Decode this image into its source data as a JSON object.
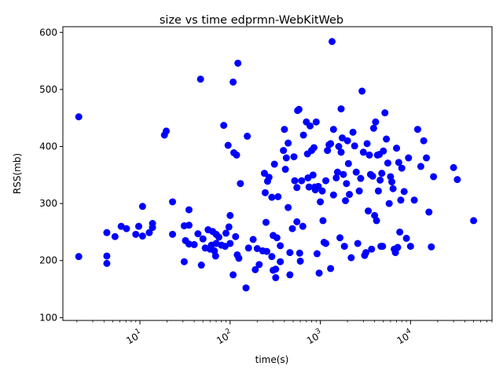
{
  "chart_data": {
    "type": "scatter",
    "title": "size vs time edprmn-WebKitWeb",
    "xlabel": "time(s)",
    "ylabel": "RSS(mb)",
    "xscale": "log",
    "xlim": [
      1.4,
      80000
    ],
    "ylim": [
      95,
      610
    ],
    "x_ticks": [
      10,
      100,
      1000,
      10000
    ],
    "x_tick_labels": [
      {
        "base": "10",
        "exp": "1"
      },
      {
        "base": "10",
        "exp": "2"
      },
      {
        "base": "10",
        "exp": "3"
      },
      {
        "base": "10",
        "exp": "4"
      }
    ],
    "y_ticks": [
      100,
      200,
      300,
      400,
      500,
      600
    ],
    "y_tick_labels": [
      "100",
      "200",
      "300",
      "400",
      "500",
      "600"
    ],
    "grid": false,
    "legend": "none",
    "marker_color": "#0000ff",
    "series": [
      {
        "points": [
          [
            2.1,
            452
          ],
          [
            2.1,
            207
          ],
          [
            4.3,
            249
          ],
          [
            4.3,
            208
          ],
          [
            4.3,
            195
          ],
          [
            5.3,
            242
          ],
          [
            6.2,
            260
          ],
          [
            7.1,
            256
          ],
          [
            9.0,
            246
          ],
          [
            9.7,
            260
          ],
          [
            10.7,
            295
          ],
          [
            10.7,
            243
          ],
          [
            12.7,
            249
          ],
          [
            13.8,
            265
          ],
          [
            13.8,
            258
          ],
          [
            18.7,
            420
          ],
          [
            19.6,
            427
          ],
          [
            23,
            303
          ],
          [
            23,
            246
          ],
          [
            31,
            261
          ],
          [
            31,
            198
          ],
          [
            32,
            235
          ],
          [
            35,
            289
          ],
          [
            35,
            262
          ],
          [
            35,
            229
          ],
          [
            40,
            228
          ],
          [
            44,
            247
          ],
          [
            47,
            518
          ],
          [
            48,
            192
          ],
          [
            50,
            238
          ],
          [
            53,
            222
          ],
          [
            57,
            254
          ],
          [
            60,
            220
          ],
          [
            62,
            227
          ],
          [
            64,
            251
          ],
          [
            67,
            217
          ],
          [
            69,
            208
          ],
          [
            70,
            230
          ],
          [
            70,
            246
          ],
          [
            75,
            241
          ],
          [
            80,
            227
          ],
          [
            85,
            437
          ],
          [
            88,
            225
          ],
          [
            90,
            248
          ],
          [
            95,
            402
          ],
          [
            97,
            259
          ],
          [
            100,
            279
          ],
          [
            100,
            230
          ],
          [
            108,
            513
          ],
          [
            108,
            175
          ],
          [
            110,
            389
          ],
          [
            115,
            242
          ],
          [
            118,
            385
          ],
          [
            120,
            210
          ],
          [
            122,
            546
          ],
          [
            125,
            204
          ],
          [
            130,
            335
          ],
          [
            150,
            152
          ],
          [
            155,
            418
          ],
          [
            160,
            222
          ],
          [
            180,
            237
          ],
          [
            190,
            184
          ],
          [
            200,
            221
          ],
          [
            210,
            193
          ],
          [
            230,
            217
          ],
          [
            240,
            353
          ],
          [
            245,
            319
          ],
          [
            250,
            267
          ],
          [
            255,
            216
          ],
          [
            260,
            339
          ],
          [
            270,
            346
          ],
          [
            290,
            311
          ],
          [
            290,
            207
          ],
          [
            300,
            244
          ],
          [
            300,
            183
          ],
          [
            310,
            369
          ],
          [
            320,
            185
          ],
          [
            320,
            170
          ],
          [
            330,
            240
          ],
          [
            340,
            312
          ],
          [
            360,
            226
          ],
          [
            360,
            198
          ],
          [
            390,
            393
          ],
          [
            400,
            430
          ],
          [
            410,
            360
          ],
          [
            420,
            380
          ],
          [
            440,
            406
          ],
          [
            440,
            293
          ],
          [
            460,
            175
          ],
          [
            460,
            214
          ],
          [
            490,
            256
          ],
          [
            510,
            382
          ],
          [
            520,
            340
          ],
          [
            550,
            268
          ],
          [
            550,
            328
          ],
          [
            560,
            463
          ],
          [
            580,
            465
          ],
          [
            590,
            213
          ],
          [
            600,
            199
          ],
          [
            620,
            340
          ],
          [
            640,
            260
          ],
          [
            650,
            420
          ],
          [
            700,
            443
          ],
          [
            720,
            387
          ],
          [
            730,
            345
          ],
          [
            750,
            329
          ],
          [
            770,
            436
          ],
          [
            800,
            393
          ],
          [
            830,
            350
          ],
          [
            850,
            398
          ],
          [
            870,
            329
          ],
          [
            880,
            324
          ],
          [
            900,
            443
          ],
          [
            920,
            212
          ],
          [
            950,
            330
          ],
          [
            970,
            178
          ],
          [
            1000,
            303
          ],
          [
            1050,
            322
          ],
          [
            1070,
            270
          ],
          [
            1100,
            232
          ],
          [
            1150,
            340
          ],
          [
            1150,
            230
          ],
          [
            1200,
            393
          ],
          [
            1250,
            403
          ],
          [
            1300,
            405
          ],
          [
            1300,
            186
          ],
          [
            1350,
            584
          ],
          [
            1400,
            430
          ],
          [
            1400,
            315
          ],
          [
            1500,
            345
          ],
          [
            1550,
            355
          ],
          [
            1600,
            400
          ],
          [
            1650,
            240
          ],
          [
            1700,
            390
          ],
          [
            1700,
            466
          ],
          [
            1750,
            415
          ],
          [
            1800,
            351
          ],
          [
            1850,
            225
          ],
          [
            1900,
            305
          ],
          [
            1950,
            335
          ],
          [
            2000,
            410
          ],
          [
            2050,
            370
          ],
          [
            2100,
            316
          ],
          [
            2200,
            205
          ],
          [
            2300,
            425
          ],
          [
            2400,
            401
          ],
          [
            2500,
            355
          ],
          [
            2600,
            230
          ],
          [
            2700,
            322
          ],
          [
            2800,
            344
          ],
          [
            2900,
            497
          ],
          [
            3000,
            390
          ],
          [
            3100,
            209
          ],
          [
            3200,
            214
          ],
          [
            3300,
            405
          ],
          [
            3400,
            287
          ],
          [
            3500,
            385
          ],
          [
            3600,
            351
          ],
          [
            3700,
            220
          ],
          [
            3800,
            348
          ],
          [
            3900,
            432
          ],
          [
            4000,
            279
          ],
          [
            4100,
            443
          ],
          [
            4200,
            270
          ],
          [
            4300,
            385
          ],
          [
            4400,
            322
          ],
          [
            4500,
            386
          ],
          [
            4600,
            341
          ],
          [
            4700,
            225
          ],
          [
            4800,
            353
          ],
          [
            4900,
            225
          ],
          [
            5000,
            392
          ],
          [
            5200,
            459
          ],
          [
            5400,
            413
          ],
          [
            5600,
            371
          ],
          [
            5800,
            300
          ],
          [
            6000,
            347
          ],
          [
            6200,
            338
          ],
          [
            6400,
            326
          ],
          [
            6600,
            220
          ],
          [
            6800,
            214
          ],
          [
            7000,
            397
          ],
          [
            7200,
            223
          ],
          [
            7400,
            372
          ],
          [
            7600,
            250
          ],
          [
            7800,
            306
          ],
          [
            8000,
            362
          ],
          [
            8500,
            321
          ],
          [
            9000,
            239
          ],
          [
            9500,
            380
          ],
          [
            10000,
            225
          ],
          [
            11000,
            306
          ],
          [
            12000,
            430
          ],
          [
            13000,
            365
          ],
          [
            14000,
            410
          ],
          [
            15000,
            380
          ],
          [
            16000,
            285
          ],
          [
            17000,
            224
          ],
          [
            18000,
            347
          ],
          [
            30000,
            363
          ],
          [
            33000,
            342
          ],
          [
            50000,
            270
          ]
        ]
      }
    ]
  }
}
